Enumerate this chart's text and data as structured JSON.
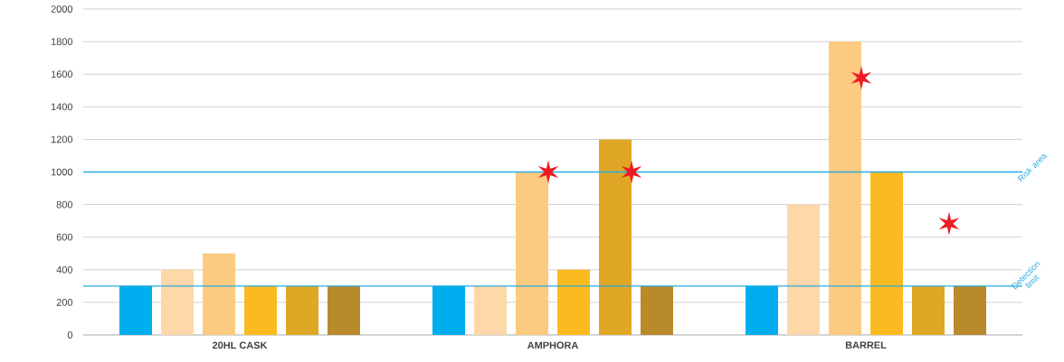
{
  "chart_data": {
    "type": "bar",
    "categories": [
      "20HL CASK",
      "AMPHORA",
      "BARREL"
    ],
    "series": [
      {
        "color": "#00aeef",
        "values": [
          300,
          300,
          300
        ]
      },
      {
        "color": "#fdd8a8",
        "values": [
          400,
          300,
          800
        ]
      },
      {
        "color": "#fcca80",
        "values": [
          500,
          1000,
          1800
        ]
      },
      {
        "color": "#fbbb20",
        "values": [
          300,
          400,
          1000
        ]
      },
      {
        "color": "#dea726",
        "values": [
          300,
          1200,
          300
        ]
      },
      {
        "color": "#b98a2a",
        "values": [
          300,
          300,
          300
        ]
      }
    ],
    "ylim": [
      0,
      2000
    ],
    "yticks": [
      0,
      200,
      400,
      600,
      800,
      1000,
      1200,
      1400,
      1600,
      1800,
      2000
    ],
    "grid": "y",
    "ref_lines": [
      {
        "axis": "y",
        "value": 1000,
        "label": "Risk area",
        "color": "#29abe2"
      },
      {
        "axis": "y",
        "value": 300,
        "label": "Detection limit",
        "color": "#29abe2"
      }
    ]
  }
}
